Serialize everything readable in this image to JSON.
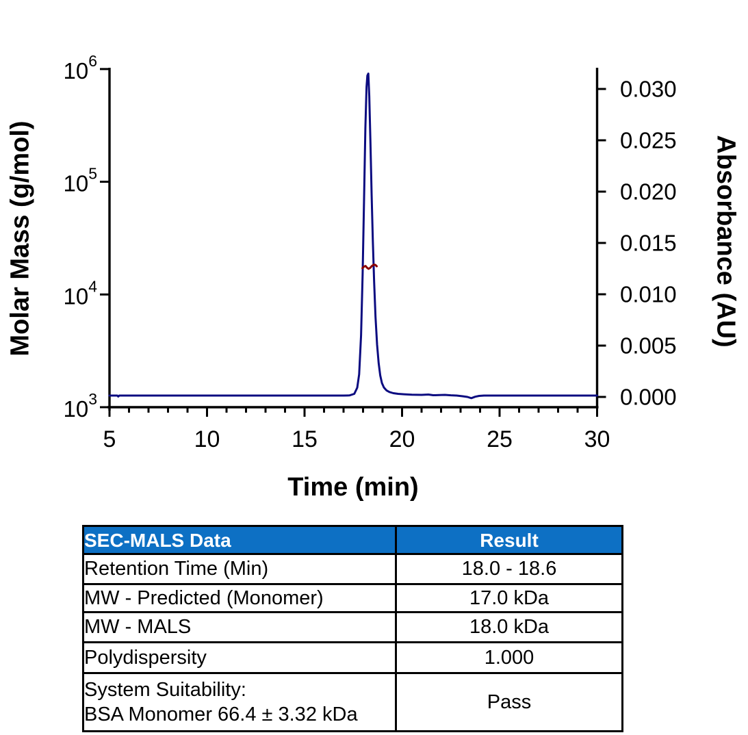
{
  "chart_data": {
    "type": "line",
    "title": "",
    "xlabel": "Time (min)",
    "x_axis": {
      "label": "Time (min)",
      "range": [
        5,
        30
      ],
      "major_ticks": [
        5,
        10,
        15,
        20,
        25,
        30
      ],
      "minor_tick_interval": 1
    },
    "y_left_axis": {
      "label": "Molar Mass (g/mol)",
      "scale": "log",
      "range": [
        1000,
        1000000
      ],
      "tick_exponents": [
        3,
        4,
        5,
        6
      ],
      "tick_base": "10"
    },
    "y_right_axis": {
      "label": "Absorbance (AU)",
      "range": [
        0.0,
        0.03
      ],
      "ticks": [
        {
          "value": 0.03,
          "label": "0.030"
        },
        {
          "value": 0.025,
          "label": "0.025"
        },
        {
          "value": 0.02,
          "label": "0.020"
        },
        {
          "value": 0.015,
          "label": "0.015"
        },
        {
          "value": 0.01,
          "label": "0.010"
        },
        {
          "value": 0.005,
          "label": "0.005"
        },
        {
          "value": 0.0,
          "label": "0.000"
        }
      ]
    },
    "grid": false,
    "legend": "none",
    "series": [
      {
        "name": "UV absorbance trace",
        "axis": "right",
        "units": "AU",
        "color": "#0b0b80",
        "points": [
          [
            5.0,
            0.00013
          ],
          [
            5.4,
            0.00013
          ],
          [
            5.45,
            4e-05
          ],
          [
            5.5,
            0.00013
          ],
          [
            7,
            0.00013
          ],
          [
            9,
            0.00013
          ],
          [
            11,
            0.00013
          ],
          [
            13,
            0.00013
          ],
          [
            15,
            0.00013
          ],
          [
            16.5,
            0.00013
          ],
          [
            17.0,
            0.00013
          ],
          [
            17.3,
            0.00015
          ],
          [
            17.55,
            0.0003
          ],
          [
            17.7,
            0.0009
          ],
          [
            17.8,
            0.0022
          ],
          [
            17.9,
            0.006
          ],
          [
            17.98,
            0.012
          ],
          [
            18.05,
            0.019
          ],
          [
            18.12,
            0.0262
          ],
          [
            18.18,
            0.0302
          ],
          [
            18.22,
            0.0313
          ],
          [
            18.27,
            0.0315
          ],
          [
            18.32,
            0.0293
          ],
          [
            18.38,
            0.0248
          ],
          [
            18.44,
            0.0198
          ],
          [
            18.5,
            0.0152
          ],
          [
            18.57,
            0.0112
          ],
          [
            18.64,
            0.0078
          ],
          [
            18.72,
            0.0051
          ],
          [
            18.8,
            0.0033
          ],
          [
            18.88,
            0.0021
          ],
          [
            18.97,
            0.00135
          ],
          [
            19.07,
            0.00092
          ],
          [
            19.2,
            0.00064
          ],
          [
            19.35,
            0.00048
          ],
          [
            19.55,
            0.00037
          ],
          [
            19.8,
            0.0003
          ],
          [
            20.1,
            0.00026
          ],
          [
            20.5,
            0.00022
          ],
          [
            21.0,
            0.0002
          ],
          [
            21.35,
            0.00023
          ],
          [
            21.6,
            0.00017
          ],
          [
            21.9,
            0.00018
          ],
          [
            22.2,
            0.0002
          ],
          [
            22.5,
            0.00016
          ],
          [
            22.8,
            0.00013
          ],
          [
            23.1,
            7e-05
          ],
          [
            23.35,
            0.0
          ],
          [
            23.55,
            -0.00012
          ],
          [
            23.75,
            2e-05
          ],
          [
            23.95,
            0.0001
          ],
          [
            24.2,
            0.00013
          ],
          [
            25,
            0.00013
          ],
          [
            26,
            0.00013
          ],
          [
            27,
            0.00013
          ],
          [
            28,
            0.00013
          ],
          [
            29,
            0.00013
          ],
          [
            30,
            0.00013
          ]
        ]
      },
      {
        "name": "MALS molar mass across peak",
        "axis": "left",
        "units": "g/mol",
        "color": "#8b0000",
        "points": [
          [
            17.97,
            17100
          ],
          [
            18.05,
            17700
          ],
          [
            18.13,
            17900
          ],
          [
            18.2,
            17300
          ],
          [
            18.28,
            16900
          ],
          [
            18.36,
            17200
          ],
          [
            18.45,
            17900
          ],
          [
            18.55,
            18400
          ],
          [
            18.63,
            18300
          ],
          [
            18.7,
            17800
          ]
        ]
      }
    ],
    "annotations": {
      "peak_apex": {
        "time_min": 18.3,
        "absorbance_au": 0.0315
      },
      "peak_window_min": "18.0 - 18.6"
    }
  },
  "table": {
    "header_bg": "#0d70c4",
    "header": {
      "col1": "SEC-MALS Data",
      "col2": "Result"
    },
    "rows": [
      {
        "label": "Retention Time (Min)",
        "value": "18.0 - 18.6"
      },
      {
        "label": "MW - Predicted (Monomer)",
        "value": "17.0 kDa"
      },
      {
        "label": "MW - MALS",
        "value": "18.0 kDa"
      },
      {
        "label": "Polydispersity",
        "value": "1.000"
      },
      {
        "label": "System Suitability:",
        "label_line2": "BSA Monomer 66.4 ± 3.32 kDa",
        "value": "Pass"
      }
    ]
  }
}
